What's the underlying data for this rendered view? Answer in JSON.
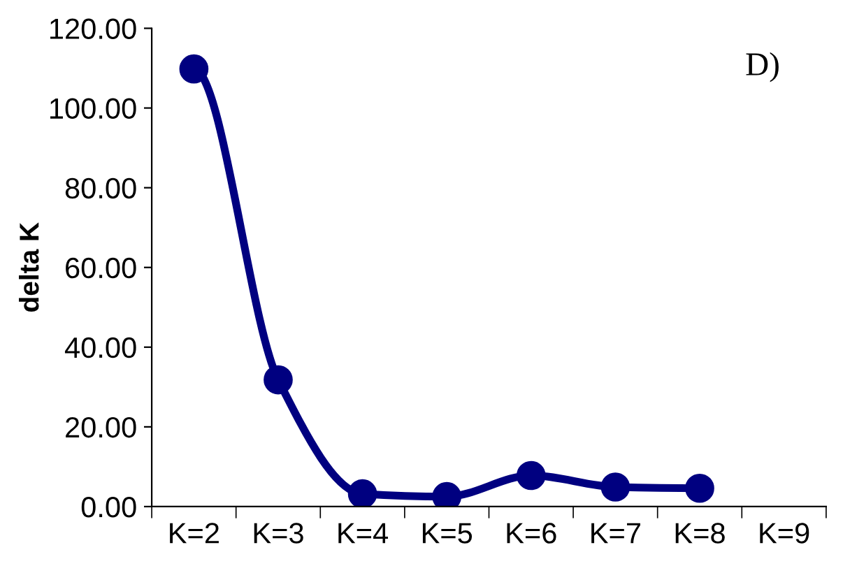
{
  "chart_data": {
    "type": "line",
    "ylabel": "delta K",
    "categories": [
      "K=2",
      "K=3",
      "K=4",
      "K=5",
      "K=6",
      "K=7",
      "K=8",
      "K=9"
    ],
    "series": [
      {
        "color": "#000080",
        "values": [
          109.8,
          31.8,
          3.2,
          2.5,
          7.8,
          4.9,
          4.6,
          null
        ]
      }
    ],
    "ylim": [
      0,
      120
    ],
    "yticks": [
      {
        "value": 0,
        "label": "0.00"
      },
      {
        "value": 20,
        "label": "20.00"
      },
      {
        "value": 40,
        "label": "40.00"
      },
      {
        "value": 60,
        "label": "60.00"
      },
      {
        "value": 80,
        "label": "80.00"
      },
      {
        "value": 100,
        "label": "100.00"
      },
      {
        "value": 120,
        "label": "120.00"
      }
    ],
    "marker": "circle",
    "line_style": "solid",
    "grid": false,
    "legend": false,
    "annotations": [
      "D)"
    ]
  }
}
